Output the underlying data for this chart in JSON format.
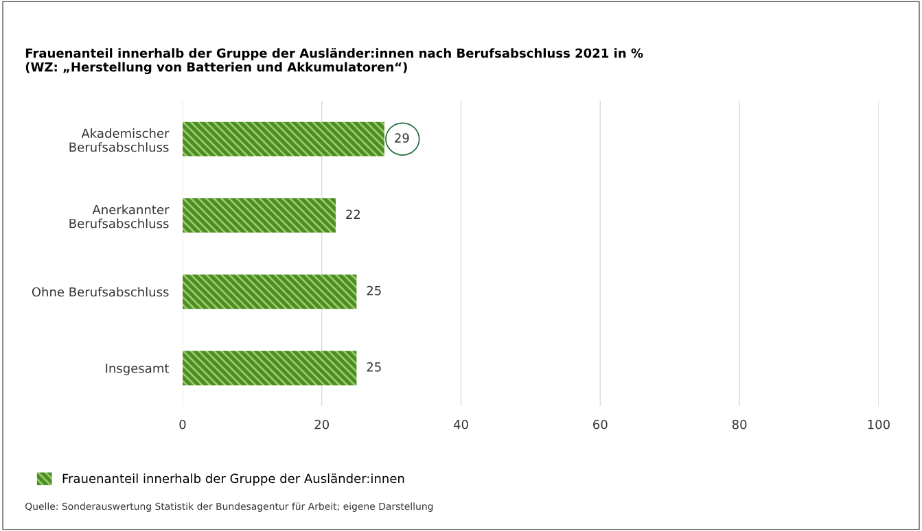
{
  "chart_data": {
    "type": "bar",
    "orientation": "horizontal",
    "title": "Frauenanteil innerhalb der Gruppe der Ausländer:innen nach Berufsabschluss 2021 in %\n(WZ: „Herstellung von Batterien und Akkumulatoren“)",
    "categories": [
      "Akademischer\nBerufsabschluss",
      "Anerkannter\nBerufsabschluss",
      "Ohne Berufsabschluss",
      "Insgesamt"
    ],
    "series": [
      {
        "name": "Frauenanteil innerhalb der Gruppe der Ausländer:innen",
        "color": "#4a8c2a",
        "values": [
          29,
          22,
          25,
          25
        ]
      }
    ],
    "xlim": [
      0,
      100
    ],
    "xticks": [
      0,
      20,
      40,
      60,
      80,
      100
    ],
    "grid": "x",
    "legend": "bottom",
    "data_labels": true,
    "annotations": [
      "Quelle: Sonderauswertung Statistik der Bundesagentur für Arbeit; eigene Darstellung"
    ]
  }
}
